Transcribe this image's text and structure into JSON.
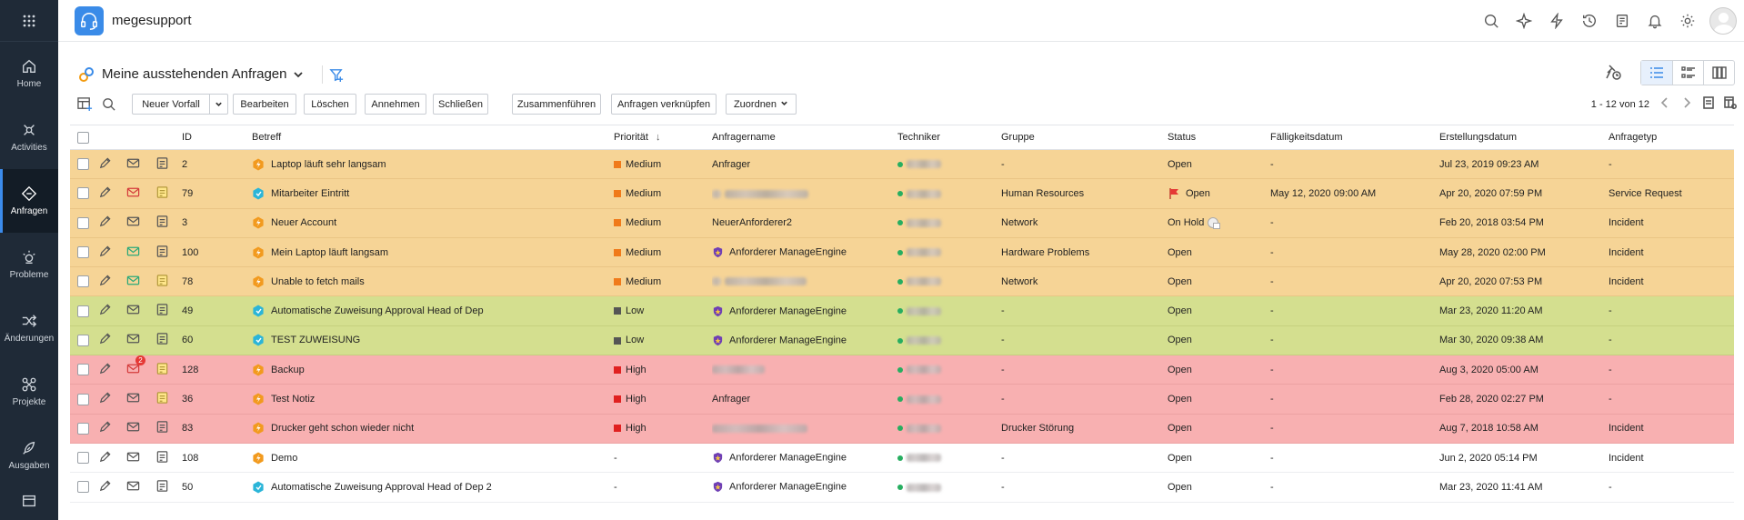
{
  "app": {
    "title": "megesupport"
  },
  "nav": [
    {
      "label": "Home",
      "icon": "home-icon"
    },
    {
      "label": "Activities",
      "icon": "activities-icon"
    },
    {
      "label": "Anfragen",
      "icon": "requests-icon",
      "active": true
    },
    {
      "label": "Probleme",
      "icon": "problems-icon"
    },
    {
      "label": "Änderungen",
      "icon": "changes-icon"
    },
    {
      "label": "Projekte",
      "icon": "projects-icon"
    },
    {
      "label": "Ausgaben",
      "icon": "releases-icon"
    }
  ],
  "view": {
    "title": "Meine ausstehenden Anfragen"
  },
  "toolbar": {
    "new_incident": "Neuer Vorfall",
    "edit": "Bearbeiten",
    "delete": "Löschen",
    "pickup": "Annehmen",
    "close": "Schließen",
    "merge": "Zusammenführen",
    "link": "Anfragen verknüpfen",
    "assign": "Zuordnen",
    "pagination": "1 - 12 von 12"
  },
  "columns": {
    "id": "ID",
    "subject": "Betreff",
    "priority": "Priorität",
    "requester": "Anfragername",
    "technician": "Techniker",
    "group": "Gruppe",
    "status": "Status",
    "due": "Fälligkeitsdatum",
    "created": "Erstellungsdatum",
    "type": "Anfragetyp"
  },
  "colors": {
    "medium_row": "#f6d496",
    "low_row": "#d4df8f",
    "high_row": "#f8b0b1",
    "medium": "#f07a1a",
    "low": "#555555",
    "high": "#e02020",
    "accent": "#3a8be8"
  },
  "rows": [
    {
      "id": "2",
      "subject": "Laptop läuft sehr langsam",
      "priority": "Medium",
      "requester": "Anfrager",
      "group": "-",
      "status": "Open",
      "due": "-",
      "created": "Jul 23, 2019 09:23 AM",
      "type": "-"
    },
    {
      "id": "79",
      "subject": "Mitarbeiter Eintritt",
      "priority": "Medium",
      "requester": "",
      "group": "Human Resources",
      "status": "Open",
      "due": "May 12, 2020 09:00 AM",
      "created": "Apr 20, 2020 07:59 PM",
      "type": "Service Request"
    },
    {
      "id": "3",
      "subject": "Neuer Account",
      "priority": "Medium",
      "requester": "NeuerAnforderer2",
      "group": "Network",
      "status": "On Hold",
      "due": "-",
      "created": "Feb 20, 2018 03:54 PM",
      "type": "Incident"
    },
    {
      "id": "100",
      "subject": "Mein Laptop läuft langsam",
      "priority": "Medium",
      "requester": "Anforderer ManageEngine",
      "group": "Hardware Problems",
      "status": "Open",
      "due": "-",
      "created": "May 28, 2020 02:00 PM",
      "type": "Incident"
    },
    {
      "id": "78",
      "subject": "Unable to fetch mails",
      "priority": "Medium",
      "requester": "",
      "group": "Network",
      "status": "Open",
      "due": "-",
      "created": "Apr 20, 2020 07:53 PM",
      "type": "Incident"
    },
    {
      "id": "49",
      "subject": "Automatische Zuweisung Approval Head of Dep",
      "priority": "Low",
      "requester": "Anforderer ManageEngine",
      "group": "-",
      "status": "Open",
      "due": "-",
      "created": "Mar 23, 2020 11:20 AM",
      "type": "-"
    },
    {
      "id": "60",
      "subject": "TEST ZUWEISUNG",
      "priority": "Low",
      "requester": "Anforderer ManageEngine",
      "group": "-",
      "status": "Open",
      "due": "-",
      "created": "Mar 30, 2020 09:38 AM",
      "type": "-"
    },
    {
      "id": "128",
      "subject": "Backup",
      "priority": "High",
      "requester": "",
      "group": "-",
      "status": "Open",
      "due": "-",
      "created": "Aug 3, 2020 05:00 AM",
      "type": "-",
      "badge": "2"
    },
    {
      "id": "36",
      "subject": "Test Notiz",
      "priority": "High",
      "requester": "Anfrager",
      "group": "-",
      "status": "Open",
      "due": "-",
      "created": "Feb 28, 2020 02:27 PM",
      "type": "-"
    },
    {
      "id": "83",
      "subject": "Drucker geht schon wieder nicht",
      "priority": "High",
      "requester": "",
      "group": "Drucker Störung",
      "status": "Open",
      "due": "-",
      "created": "Aug 7, 2018 10:58 AM",
      "type": "Incident"
    },
    {
      "id": "108",
      "subject": "Demo",
      "priority": "-",
      "requester": "Anforderer ManageEngine",
      "group": "-",
      "status": "Open",
      "due": "-",
      "created": "Jun 2, 2020 05:14 PM",
      "type": "Incident"
    },
    {
      "id": "50",
      "subject": "Automatische Zuweisung Approval Head of Dep 2",
      "priority": "-",
      "requester": "Anforderer ManageEngine",
      "group": "-",
      "status": "Open",
      "due": "-",
      "created": "Mar 23, 2020 11:41 AM",
      "type": "-"
    }
  ]
}
